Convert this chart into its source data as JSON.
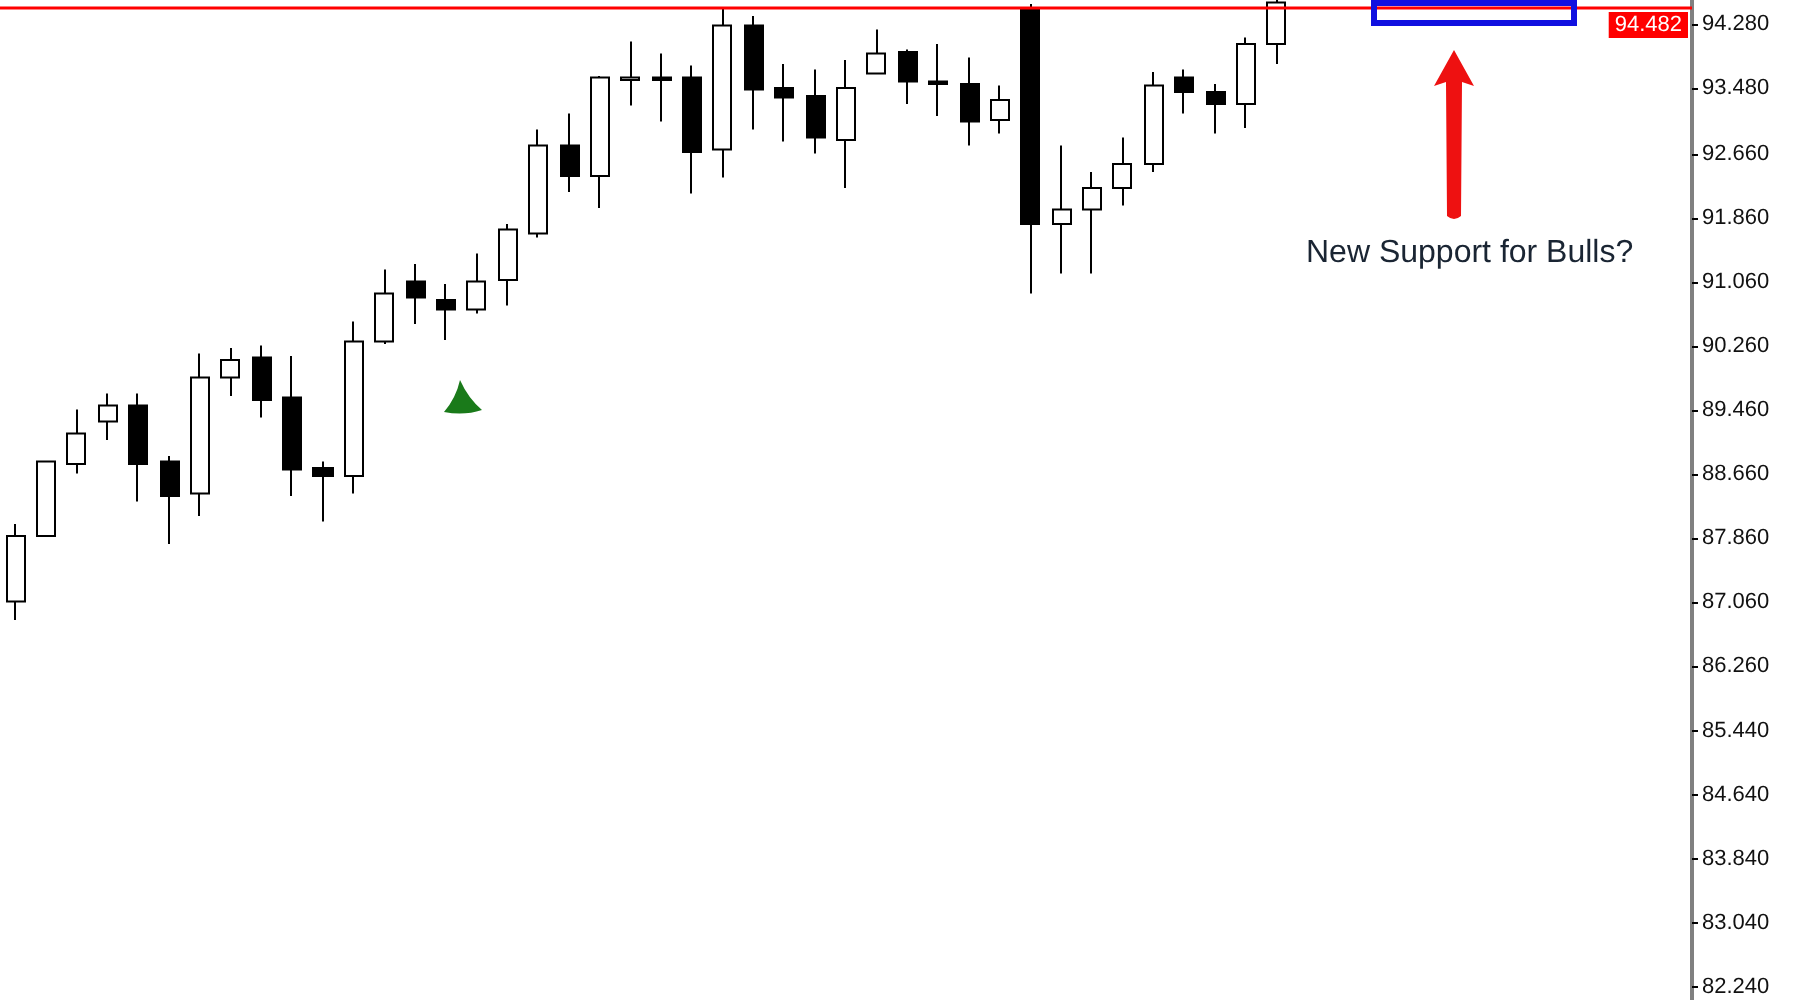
{
  "chart_data": {
    "type": "candlestick",
    "categories": [
      null,
      null,
      null,
      null,
      null,
      null,
      null,
      null,
      null,
      null,
      null,
      null,
      null,
      null,
      null,
      null,
      null,
      null,
      null,
      null,
      null,
      null,
      null,
      null,
      null,
      null,
      null,
      null,
      null,
      null,
      null,
      null,
      null,
      null,
      null,
      null,
      null,
      null,
      null,
      null,
      null,
      null,
      null,
      null,
      null,
      null,
      null,
      null,
      null,
      null,
      null,
      null,
      null,
      null,
      null
    ],
    "ohlc": [
      [
        87.06,
        88.03,
        86.83,
        87.88
      ],
      [
        87.88,
        88.81,
        87.88,
        88.81
      ],
      [
        88.78,
        89.46,
        88.66,
        89.16
      ],
      [
        89.31,
        89.66,
        89.08,
        89.51
      ],
      [
        89.51,
        89.66,
        88.31,
        88.78
      ],
      [
        88.81,
        88.88,
        87.78,
        88.38
      ],
      [
        88.41,
        90.16,
        88.13,
        89.86
      ],
      [
        89.86,
        90.23,
        89.63,
        90.08
      ],
      [
        90.11,
        90.26,
        89.36,
        89.58
      ],
      [
        89.61,
        90.13,
        88.38,
        88.71
      ],
      [
        88.73,
        88.81,
        88.06,
        88.63
      ],
      [
        88.63,
        90.56,
        88.41,
        90.31
      ],
      [
        90.31,
        91.21,
        90.28,
        90.91
      ],
      [
        91.06,
        91.28,
        90.53,
        90.86
      ],
      [
        90.83,
        91.03,
        90.33,
        90.71
      ],
      [
        90.71,
        91.41,
        90.66,
        91.06
      ],
      [
        91.08,
        91.78,
        90.76,
        91.71
      ],
      [
        91.66,
        92.96,
        91.61,
        92.76
      ],
      [
        92.76,
        93.16,
        92.18,
        92.38
      ],
      [
        92.38,
        93.63,
        91.98,
        93.61
      ],
      [
        93.58,
        94.06,
        93.26,
        93.61
      ],
      [
        93.61,
        93.91,
        93.06,
        93.58
      ],
      [
        93.61,
        93.76,
        92.16,
        92.68
      ],
      [
        92.71,
        94.48,
        92.36,
        94.26
      ],
      [
        94.26,
        94.38,
        92.96,
        93.46
      ],
      [
        93.48,
        93.78,
        92.81,
        93.36
      ],
      [
        93.38,
        93.71,
        92.66,
        92.86
      ],
      [
        92.83,
        93.83,
        92.23,
        93.48
      ],
      [
        93.66,
        94.21,
        93.66,
        93.91
      ],
      [
        93.93,
        93.96,
        93.28,
        93.56
      ],
      [
        93.56,
        94.03,
        93.13,
        93.53
      ],
      [
        93.53,
        93.86,
        92.76,
        93.06
      ],
      [
        93.08,
        93.51,
        92.91,
        93.33
      ],
      [
        94.48,
        94.53,
        90.91,
        91.78
      ],
      [
        91.78,
        92.76,
        91.16,
        91.96
      ],
      [
        91.96,
        92.43,
        91.16,
        92.23
      ],
      [
        92.23,
        92.86,
        92.01,
        92.53
      ],
      [
        92.53,
        93.68,
        92.43,
        93.51
      ],
      [
        93.61,
        93.71,
        93.16,
        93.43
      ],
      [
        93.43,
        93.53,
        92.91,
        93.28
      ],
      [
        93.28,
        94.11,
        92.98,
        94.03
      ],
      [
        94.03,
        94.58,
        93.78,
        94.55
      ],
      null,
      null,
      null,
      null,
      null,
      null,
      null,
      null,
      null,
      null,
      null,
      null,
      null
    ],
    "colors": [
      "#ffffff",
      "#ffffff",
      "#ffffff",
      "#ffffff",
      "#000000",
      "#000000",
      "#ffffff",
      "#ffffff",
      "#000000",
      "#000000",
      "#000000",
      "#ffffff",
      "#ffffff",
      "#000000",
      "#000000",
      "#ffffff",
      "#ffffff",
      "#ffffff",
      "#000000",
      "#ffffff",
      "#ffffff",
      "#000000",
      "#000000",
      "#ffffff",
      "#000000",
      "#000000",
      "#000000",
      "#ffffff",
      "#ffffff",
      "#000000",
      "#000000",
      "#000000",
      "#ffffff",
      "#000000",
      "#ffffff",
      "#ffffff",
      "#ffffff",
      "#ffffff",
      "#000000",
      "#000000",
      "#ffffff",
      "#ffffff",
      null,
      null,
      null,
      null,
      null,
      null,
      null,
      null,
      null,
      null,
      null,
      null,
      null
    ],
    "ylim": [
      82.08,
      94.58
    ],
    "yticks": [
      {
        "value": 82.24,
        "label": "82.240"
      },
      {
        "value": 83.04,
        "label": "83.040"
      },
      {
        "value": 83.84,
        "label": "83.840"
      },
      {
        "value": 84.64,
        "label": "84.640"
      },
      {
        "value": 85.44,
        "label": "85.440"
      },
      {
        "value": 86.26,
        "label": "86.260"
      },
      {
        "value": 87.06,
        "label": "87.060"
      },
      {
        "value": 87.86,
        "label": "87.860"
      },
      {
        "value": 88.66,
        "label": "88.660"
      },
      {
        "value": 89.46,
        "label": "89.460"
      },
      {
        "value": 90.26,
        "label": "90.260"
      },
      {
        "value": 91.06,
        "label": "91.060"
      },
      {
        "value": 91.86,
        "label": "91.860"
      },
      {
        "value": 92.66,
        "label": "92.660"
      },
      {
        "value": 93.48,
        "label": "93.480"
      },
      {
        "value": 94.28,
        "label": "94.280"
      }
    ],
    "ref_lines": [
      {
        "axis": "y",
        "value": 94.482,
        "label": "94.482",
        "color": "#ff0000"
      }
    ],
    "annotations": [
      "New Support for Bulls?"
    ],
    "tick_labels": "y",
    "grid": false
  }
}
